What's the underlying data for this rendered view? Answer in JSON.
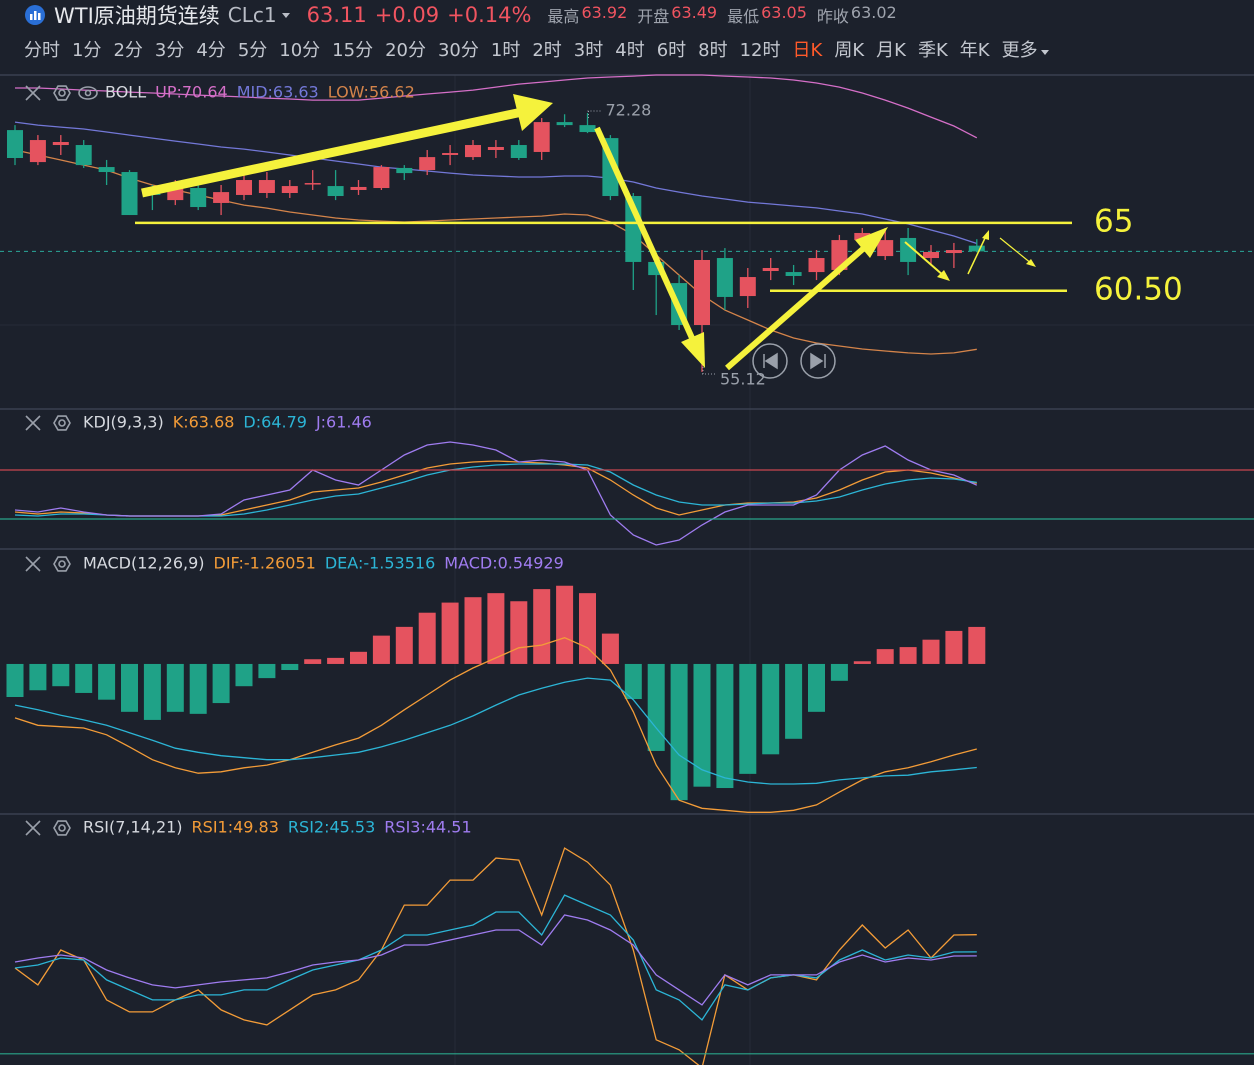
{
  "header": {
    "symbol_name": "WTI原油期货连续",
    "code": "CLc1",
    "price": "63.11",
    "change": "+0.09",
    "change_pct": "+0.14%",
    "stats": [
      {
        "label": "最高",
        "value": "63.92"
      },
      {
        "label": "开盘",
        "value": "63.49"
      },
      {
        "label": "最低",
        "value": "63.05"
      },
      {
        "label": "昨收",
        "value": "63.02"
      }
    ]
  },
  "periods": [
    "分时",
    "1分",
    "2分",
    "3分",
    "4分",
    "5分",
    "10分",
    "15分",
    "20分",
    "30分",
    "1时",
    "2时",
    "3时",
    "4时",
    "6时",
    "8时",
    "12时",
    "日K",
    "周K",
    "月K",
    "季K",
    "年K",
    "更多"
  ],
  "active_period": "日K",
  "chart_data": [
    {
      "type": "candlestick",
      "title": "BOLL",
      "up_color": "#e5535f",
      "down_color": "#1fa287",
      "ylim": [
        52.73,
        75.0
      ],
      "open": [
        71.15,
        69.03,
        70.16,
        70.16,
        68.7,
        68.37,
        67.18,
        66.51,
        67.31,
        66.32,
        66.85,
        66.98,
        66.98,
        67.6,
        67.44,
        67.18,
        67.31,
        68.64,
        68.5,
        69.5,
        69.36,
        69.83,
        70.16,
        69.7,
        71.68,
        71.48,
        70.62,
        66.78,
        62.41,
        61.01,
        58.23,
        62.67,
        60.15,
        61.81,
        61.74,
        61.74,
        61.88,
        63.86,
        62.8,
        64.0,
        62.67,
        63.0,
        63.49
      ],
      "high": [
        71.48,
        70.82,
        70.82,
        70.49,
        69.17,
        68.5,
        67.51,
        67.84,
        67.84,
        67.51,
        68.5,
        68.37,
        67.84,
        68.5,
        68.5,
        67.84,
        68.83,
        68.83,
        69.83,
        70.16,
        70.49,
        70.49,
        70.49,
        71.95,
        72.2,
        72.28,
        70.82,
        66.98,
        62.87,
        61.54,
        63.2,
        63.33,
        62.01,
        62.67,
        62.21,
        63.2,
        64.2,
        64.66,
        64.66,
        64.66,
        63.53,
        63.67,
        63.92
      ],
      "low": [
        68.83,
        68.83,
        69.5,
        68.64,
        67.51,
        65.52,
        65.85,
        66.18,
        65.85,
        65.52,
        66.51,
        66.65,
        66.65,
        67.18,
        66.51,
        66.85,
        67.18,
        67.84,
        68.17,
        68.83,
        69.17,
        69.3,
        69.17,
        69.17,
        71.35,
        70.95,
        66.51,
        60.55,
        58.89,
        57.9,
        55.12,
        59.23,
        59.36,
        61.21,
        60.88,
        61.21,
        61.54,
        63.2,
        62.54,
        61.54,
        62.21,
        62.01,
        63.05
      ],
      "close": [
        69.3,
        70.49,
        70.36,
        68.83,
        68.37,
        65.52,
        66.85,
        67.31,
        66.05,
        67.04,
        67.84,
        67.84,
        67.44,
        67.64,
        66.78,
        67.38,
        68.7,
        68.3,
        69.36,
        69.63,
        70.16,
        70.03,
        69.3,
        71.68,
        71.48,
        71.02,
        66.78,
        62.41,
        61.54,
        58.23,
        62.54,
        60.09,
        61.41,
        62.01,
        61.48,
        62.67,
        63.86,
        64.33,
        63.86,
        62.41,
        63.07,
        63.2,
        63.11
      ],
      "series": [
        {
          "name": "UP:70.64",
          "color": "#d56fc8",
          "values": [
            73.94,
            73.94,
            73.87,
            73.8,
            73.74,
            73.67,
            73.61,
            73.54,
            73.47,
            73.41,
            73.34,
            73.27,
            73.21,
            73.14,
            73.14,
            73.14,
            73.27,
            73.41,
            73.54,
            73.67,
            73.8,
            74.0,
            74.2,
            74.33,
            74.47,
            74.6,
            74.67,
            74.73,
            74.8,
            74.8,
            74.8,
            74.73,
            74.67,
            74.6,
            74.47,
            74.27,
            74.0,
            73.61,
            73.14,
            72.61,
            72.01,
            71.42,
            70.64
          ]
        },
        {
          "name": "MID:63.63",
          "color": "#7378d8",
          "values": [
            71.68,
            71.48,
            71.35,
            71.22,
            71.02,
            70.82,
            70.62,
            70.42,
            70.23,
            70.03,
            69.89,
            69.7,
            69.5,
            69.3,
            69.1,
            68.9,
            68.7,
            68.57,
            68.44,
            68.3,
            68.17,
            68.11,
            68.04,
            68.04,
            68.11,
            68.11,
            67.97,
            67.71,
            67.31,
            67.04,
            66.78,
            66.58,
            66.38,
            66.25,
            66.12,
            65.99,
            65.79,
            65.59,
            65.26,
            64.93,
            64.53,
            64.13,
            63.63
          ]
        },
        {
          "name": "LOW:56.62",
          "color": "#d4844a",
          "values": [
            69.83,
            69.5,
            69.17,
            68.83,
            68.5,
            67.97,
            67.51,
            67.18,
            66.85,
            66.51,
            66.18,
            65.98,
            65.72,
            65.52,
            65.32,
            65.19,
            65.12,
            65.06,
            65.12,
            65.19,
            65.26,
            65.32,
            65.39,
            65.45,
            65.59,
            65.52,
            65.06,
            64.2,
            62.87,
            61.54,
            60.22,
            59.22,
            58.56,
            57.9,
            57.37,
            57.04,
            56.84,
            56.64,
            56.51,
            56.38,
            56.31,
            56.38,
            56.62
          ]
        }
      ],
      "max_label": 72.28,
      "min_label": 55.12,
      "levels": [
        {
          "value": 65,
          "label": "65"
        },
        {
          "value": 60.5,
          "label": "60.50"
        }
      ],
      "level_color": "#f5f23c"
    },
    {
      "type": "line",
      "title": "KDJ(9,3,3)",
      "ylim": [
        -15.5,
        153.5
      ],
      "reference_lines": [
        {
          "value": 80,
          "color": "#c9474f"
        },
        {
          "value": 20,
          "color": "#2aa58a"
        }
      ],
      "series": [
        {
          "name": "K:63.68",
          "color": "#f39c38",
          "values": [
            28.57,
            26.12,
            28.57,
            27.35,
            24.9,
            23.67,
            23.67,
            23.67,
            23.67,
            24.9,
            31.02,
            37.14,
            43.27,
            53.06,
            55.51,
            57.96,
            65.31,
            73.88,
            82.45,
            87.35,
            89.8,
            91.02,
            89.8,
            88.57,
            86.12,
            82.45,
            67.76,
            49.39,
            33.47,
            24.9,
            31.02,
            37.14,
            39.59,
            39.59,
            40.82,
            45.71,
            55.51,
            67.76,
            77.55,
            80,
            76.33,
            70.2,
            63.68
          ]
        },
        {
          "name": "D:64.79",
          "color": "#2cb5d6",
          "values": [
            24.9,
            23.67,
            26.12,
            26.12,
            24.9,
            23.67,
            23.67,
            23.67,
            23.67,
            23.67,
            26.12,
            31.02,
            37.14,
            43.27,
            48.16,
            50.61,
            57.96,
            65.31,
            73.88,
            80,
            83.67,
            86.12,
            87.35,
            87.35,
            87.35,
            86.12,
            77.55,
            61.63,
            49.39,
            40.82,
            37.14,
            37.14,
            38.37,
            39.59,
            39.59,
            42.04,
            46.94,
            55.51,
            62.86,
            67.76,
            70.2,
            68.98,
            64.79
          ]
        },
        {
          "name": "J:61.46",
          "color": "#9f7cf0",
          "values": [
            31.02,
            28.57,
            33.47,
            28.57,
            24.9,
            23.67,
            23.67,
            23.67,
            23.67,
            26.12,
            43.27,
            49.39,
            55.51,
            80,
            67.76,
            61.63,
            80,
            98.37,
            110.61,
            114.29,
            110.61,
            104.49,
            89.8,
            92.24,
            89.8,
            80,
            24.9,
            0.41,
            -11.84,
            -5.71,
            12.65,
            28.57,
            37.14,
            37.14,
            37.14,
            49.39,
            80,
            98.37,
            109.39,
            92.24,
            80,
            73.88,
            61.46
          ]
        }
      ]
    },
    {
      "type": "macd",
      "title": "MACD(12,26,9)",
      "ylim": [
        -2.24,
        1.69
      ],
      "histogram": {
        "name": "MACD:0.54929",
        "color": "#a07cf0",
        "up_color": "#e5535f",
        "down_color": "#1fa287",
        "values": [
          -0.49,
          -0.39,
          -0.33,
          -0.43,
          -0.53,
          -0.71,
          -0.83,
          -0.71,
          -0.74,
          -0.58,
          -0.33,
          -0.21,
          -0.09,
          0.07,
          0.09,
          0.18,
          0.42,
          0.55,
          0.76,
          0.91,
          0.99,
          1.05,
          0.93,
          1.11,
          1.16,
          1.05,
          0.45,
          -0.52,
          -1.29,
          -2.02,
          -1.82,
          -1.84,
          -1.63,
          -1.34,
          -1.11,
          -0.71,
          -0.25,
          0.04,
          0.22,
          0.25,
          0.36,
          0.49,
          0.54929
        ]
      },
      "series": [
        {
          "name": "DIF:-1.26051",
          "color": "#f39c38",
          "values": [
            -0.8,
            -0.91,
            -0.93,
            -0.95,
            -1.05,
            -1.23,
            -1.42,
            -1.54,
            -1.62,
            -1.6,
            -1.54,
            -1.5,
            -1.42,
            -1.31,
            -1.2,
            -1.1,
            -0.91,
            -0.68,
            -0.46,
            -0.24,
            -0.06,
            0.09,
            0.24,
            0.28,
            0.39,
            0.24,
            -0.09,
            -0.71,
            -1.5,
            -2.02,
            -2.14,
            -2.17,
            -2.2,
            -2.2,
            -2.17,
            -2.09,
            -1.9,
            -1.72,
            -1.6,
            -1.54,
            -1.45,
            -1.35,
            -1.26051
          ]
        },
        {
          "name": "DEA:-1.53516",
          "color": "#2cb5d6",
          "values": [
            -0.61,
            -0.68,
            -0.76,
            -0.83,
            -0.91,
            -1.02,
            -1.13,
            -1.25,
            -1.31,
            -1.36,
            -1.39,
            -1.42,
            -1.42,
            -1.39,
            -1.35,
            -1.31,
            -1.23,
            -1.13,
            -1.02,
            -0.91,
            -0.77,
            -0.61,
            -0.46,
            -0.36,
            -0.27,
            -0.21,
            -0.24,
            -0.53,
            -0.95,
            -1.35,
            -1.57,
            -1.69,
            -1.75,
            -1.78,
            -1.78,
            -1.77,
            -1.72,
            -1.69,
            -1.66,
            -1.65,
            -1.6,
            -1.57,
            -1.53516
          ]
        }
      ]
    },
    {
      "type": "line",
      "title": "RSI(7,14,21)",
      "ylim": [
        17.2,
        79.8
      ],
      "reference_lines": [
        {
          "value": 20,
          "color": "#2aa58a"
        }
      ],
      "series": [
        {
          "name": "RSI1:49.83",
          "color": "#f39c38",
          "values": [
            41.5,
            37.25,
            46,
            43.5,
            33.5,
            30.5,
            30.5,
            33.5,
            36,
            31,
            28.5,
            27.25,
            31,
            34.75,
            36,
            38.5,
            46,
            57.25,
            57.25,
            63.5,
            63.5,
            69,
            68.5,
            54.75,
            71.5,
            68,
            62.25,
            46,
            23.5,
            21,
            16.5,
            39.75,
            36,
            39,
            39.75,
            38.5,
            46,
            52.25,
            46.5,
            51,
            44,
            49.75,
            49.83
          ]
        },
        {
          "name": "RSI2:45.53",
          "color": "#2cb5d6",
          "values": [
            41.5,
            42.25,
            44,
            43.5,
            38.5,
            36,
            33.5,
            33.5,
            34.75,
            34.75,
            36,
            36,
            38.5,
            41,
            42.25,
            43.5,
            46,
            49.75,
            49.75,
            51,
            52.25,
            55.5,
            55.5,
            49.75,
            59.75,
            57.25,
            54.75,
            48.5,
            36,
            33.5,
            28.5,
            37.25,
            36,
            39,
            39.75,
            39,
            43.5,
            46,
            43.5,
            44.75,
            44,
            45.5,
            45.53
          ]
        },
        {
          "name": "RSI3:44.51",
          "color": "#9f7cf0",
          "values": [
            43,
            44,
            44.75,
            44,
            41,
            39,
            37.25,
            36.5,
            37.25,
            38,
            38.5,
            39,
            40.5,
            42.25,
            43,
            43.5,
            44.75,
            47.25,
            47.25,
            48.5,
            49.75,
            51,
            51,
            47.25,
            54.75,
            53.5,
            51,
            47.25,
            39.75,
            36,
            32.25,
            39.75,
            37.25,
            39.75,
            39.75,
            39.75,
            43,
            44.75,
            43,
            44,
            43.5,
            44.5,
            44.51
          ]
        }
      ]
    }
  ]
}
